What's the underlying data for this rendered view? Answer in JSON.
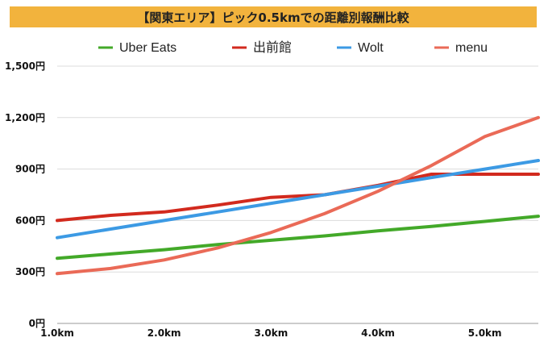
{
  "chart_data": {
    "type": "line",
    "title": "【関東エリア】ピック0.5kmでの距離別報酬比較",
    "x": [
      1.0,
      1.5,
      2.0,
      2.5,
      3.0,
      3.5,
      4.0,
      4.5,
      5.0,
      5.5
    ],
    "xticks": [
      "1.0km",
      "2.0km",
      "3.0km",
      "4.0km",
      "5.0km"
    ],
    "xlim": [
      1.0,
      5.5
    ],
    "yticks": [
      "0円",
      "300円",
      "600円",
      "900円",
      "1,200円",
      "1,500円"
    ],
    "ylim": [
      0,
      1500
    ],
    "grid": true,
    "legend_position": "top",
    "series": [
      {
        "name": "Uber Eats",
        "color": "#43a929",
        "values": [
          380,
          405,
          430,
          460,
          485,
          510,
          540,
          565,
          595,
          625
        ]
      },
      {
        "name": "出前館",
        "color": "#d22a1e",
        "values": [
          600,
          630,
          650,
          690,
          735,
          750,
          805,
          870,
          870,
          870
        ]
      },
      {
        "name": "Wolt",
        "color": "#3c9ae4",
        "values": [
          500,
          550,
          600,
          650,
          700,
          750,
          800,
          850,
          900,
          950
        ]
      },
      {
        "name": "menu",
        "color": "#ea6a57",
        "values": [
          290,
          320,
          370,
          440,
          530,
          640,
          770,
          920,
          1090,
          1200
        ]
      }
    ]
  }
}
